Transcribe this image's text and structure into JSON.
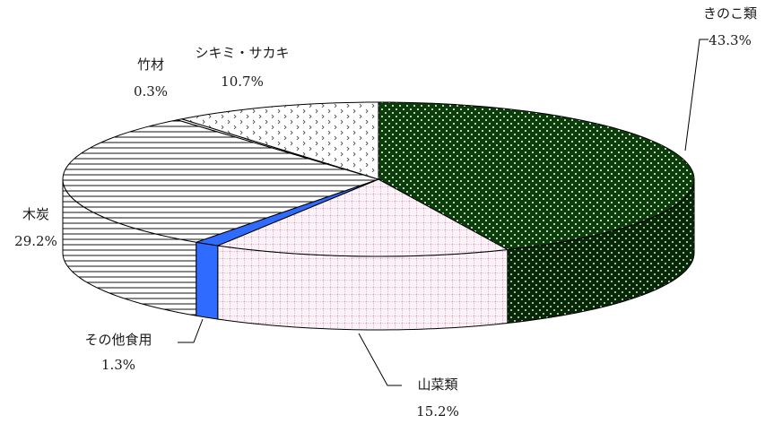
{
  "chart_data": {
    "type": "pie",
    "title": "",
    "categories": [
      "きのこ類",
      "山菜類",
      "その他食用",
      "木炭",
      "竹材",
      "シキミ・サカキ"
    ],
    "values": [
      43.3,
      15.2,
      1.3,
      29.2,
      0.3,
      10.7
    ],
    "value_labels": [
      "43.3%",
      "15.2%",
      "1.3%",
      "29.2%",
      "0.3%",
      "10.7%"
    ],
    "legend": "none",
    "style": "3d-exploded-none",
    "colors": {
      "kinoko": "#0b3d0b",
      "sansai": "#f7eff5",
      "other_food": "#2f6bff",
      "mokutan": "#ffffff",
      "chikuzai": "#ffffff",
      "shikimi": "#ffffff"
    },
    "patterns": [
      "dots-on-dark-green",
      "pink-grid",
      "solid-blue",
      "horizontal-lines",
      "plain",
      "small-chevrons"
    ]
  }
}
